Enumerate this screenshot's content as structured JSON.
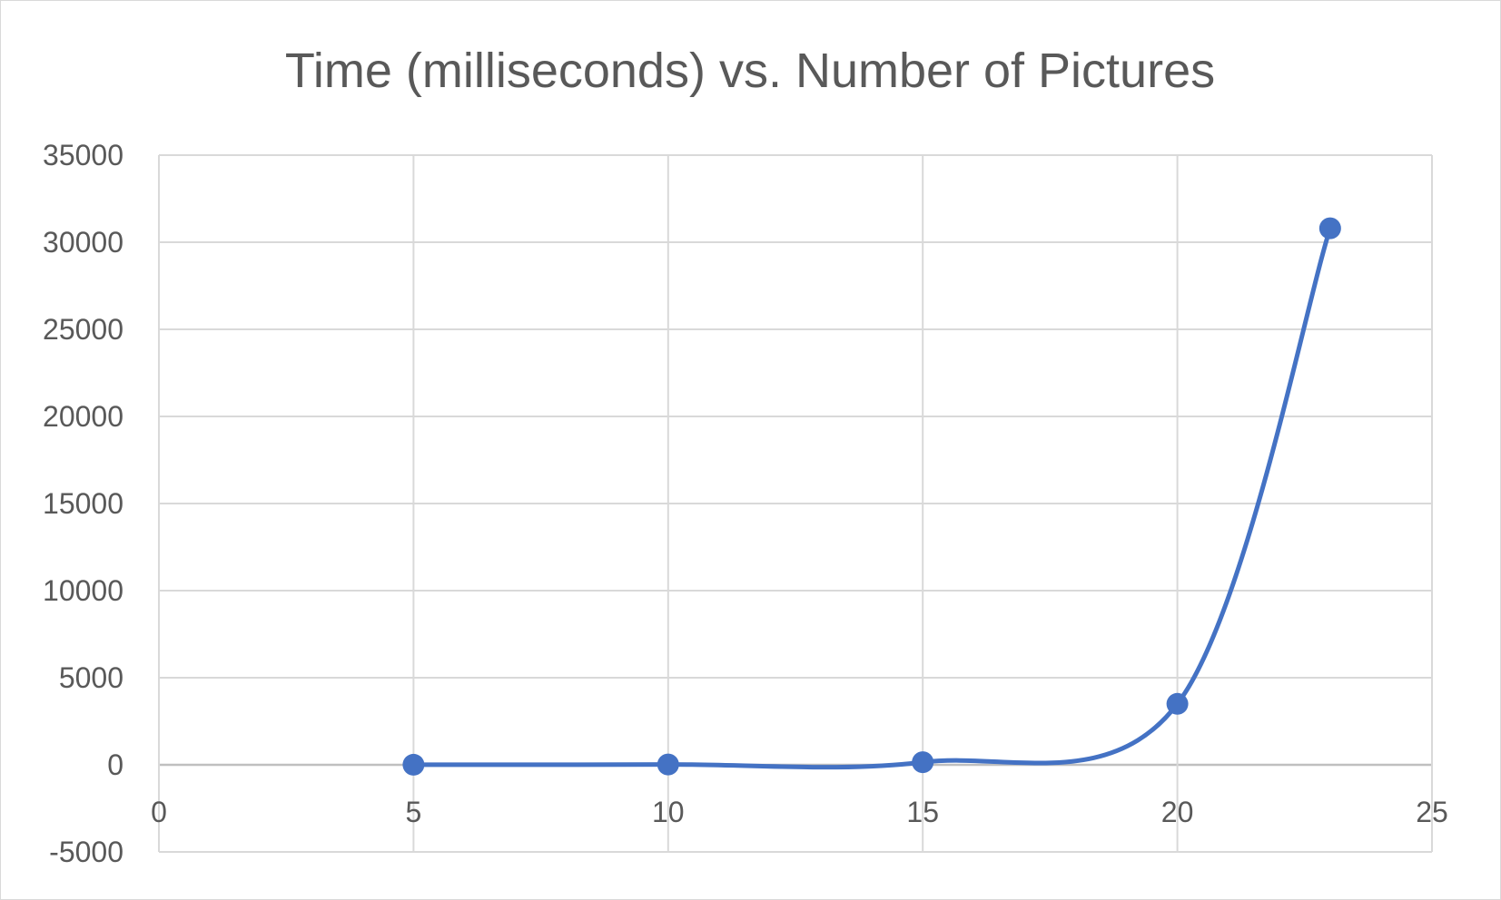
{
  "chart_data": {
    "type": "scatter",
    "title": "Time (milliseconds) vs. Number of Pictures",
    "xlabel": "",
    "ylabel": "",
    "xlim": [
      0,
      25
    ],
    "ylim": [
      -5000,
      35000
    ],
    "x_ticks": [
      0,
      5,
      10,
      15,
      20,
      25
    ],
    "y_ticks": [
      -5000,
      0,
      5000,
      10000,
      15000,
      20000,
      25000,
      30000,
      35000
    ],
    "x_tick_labels": [
      "0",
      "5",
      "10",
      "15",
      "20",
      "25"
    ],
    "y_tick_labels": [
      "-5000",
      "0",
      "5000",
      "10000",
      "15000",
      "20000",
      "25000",
      "30000",
      "35000"
    ],
    "grid": true,
    "smooth_line": true,
    "legend": "none",
    "series": [
      {
        "color": "#4472c4",
        "x": [
          5,
          10,
          15,
          20,
          23
        ],
        "y": [
          5,
          20,
          150,
          3500,
          30800
        ]
      }
    ]
  }
}
